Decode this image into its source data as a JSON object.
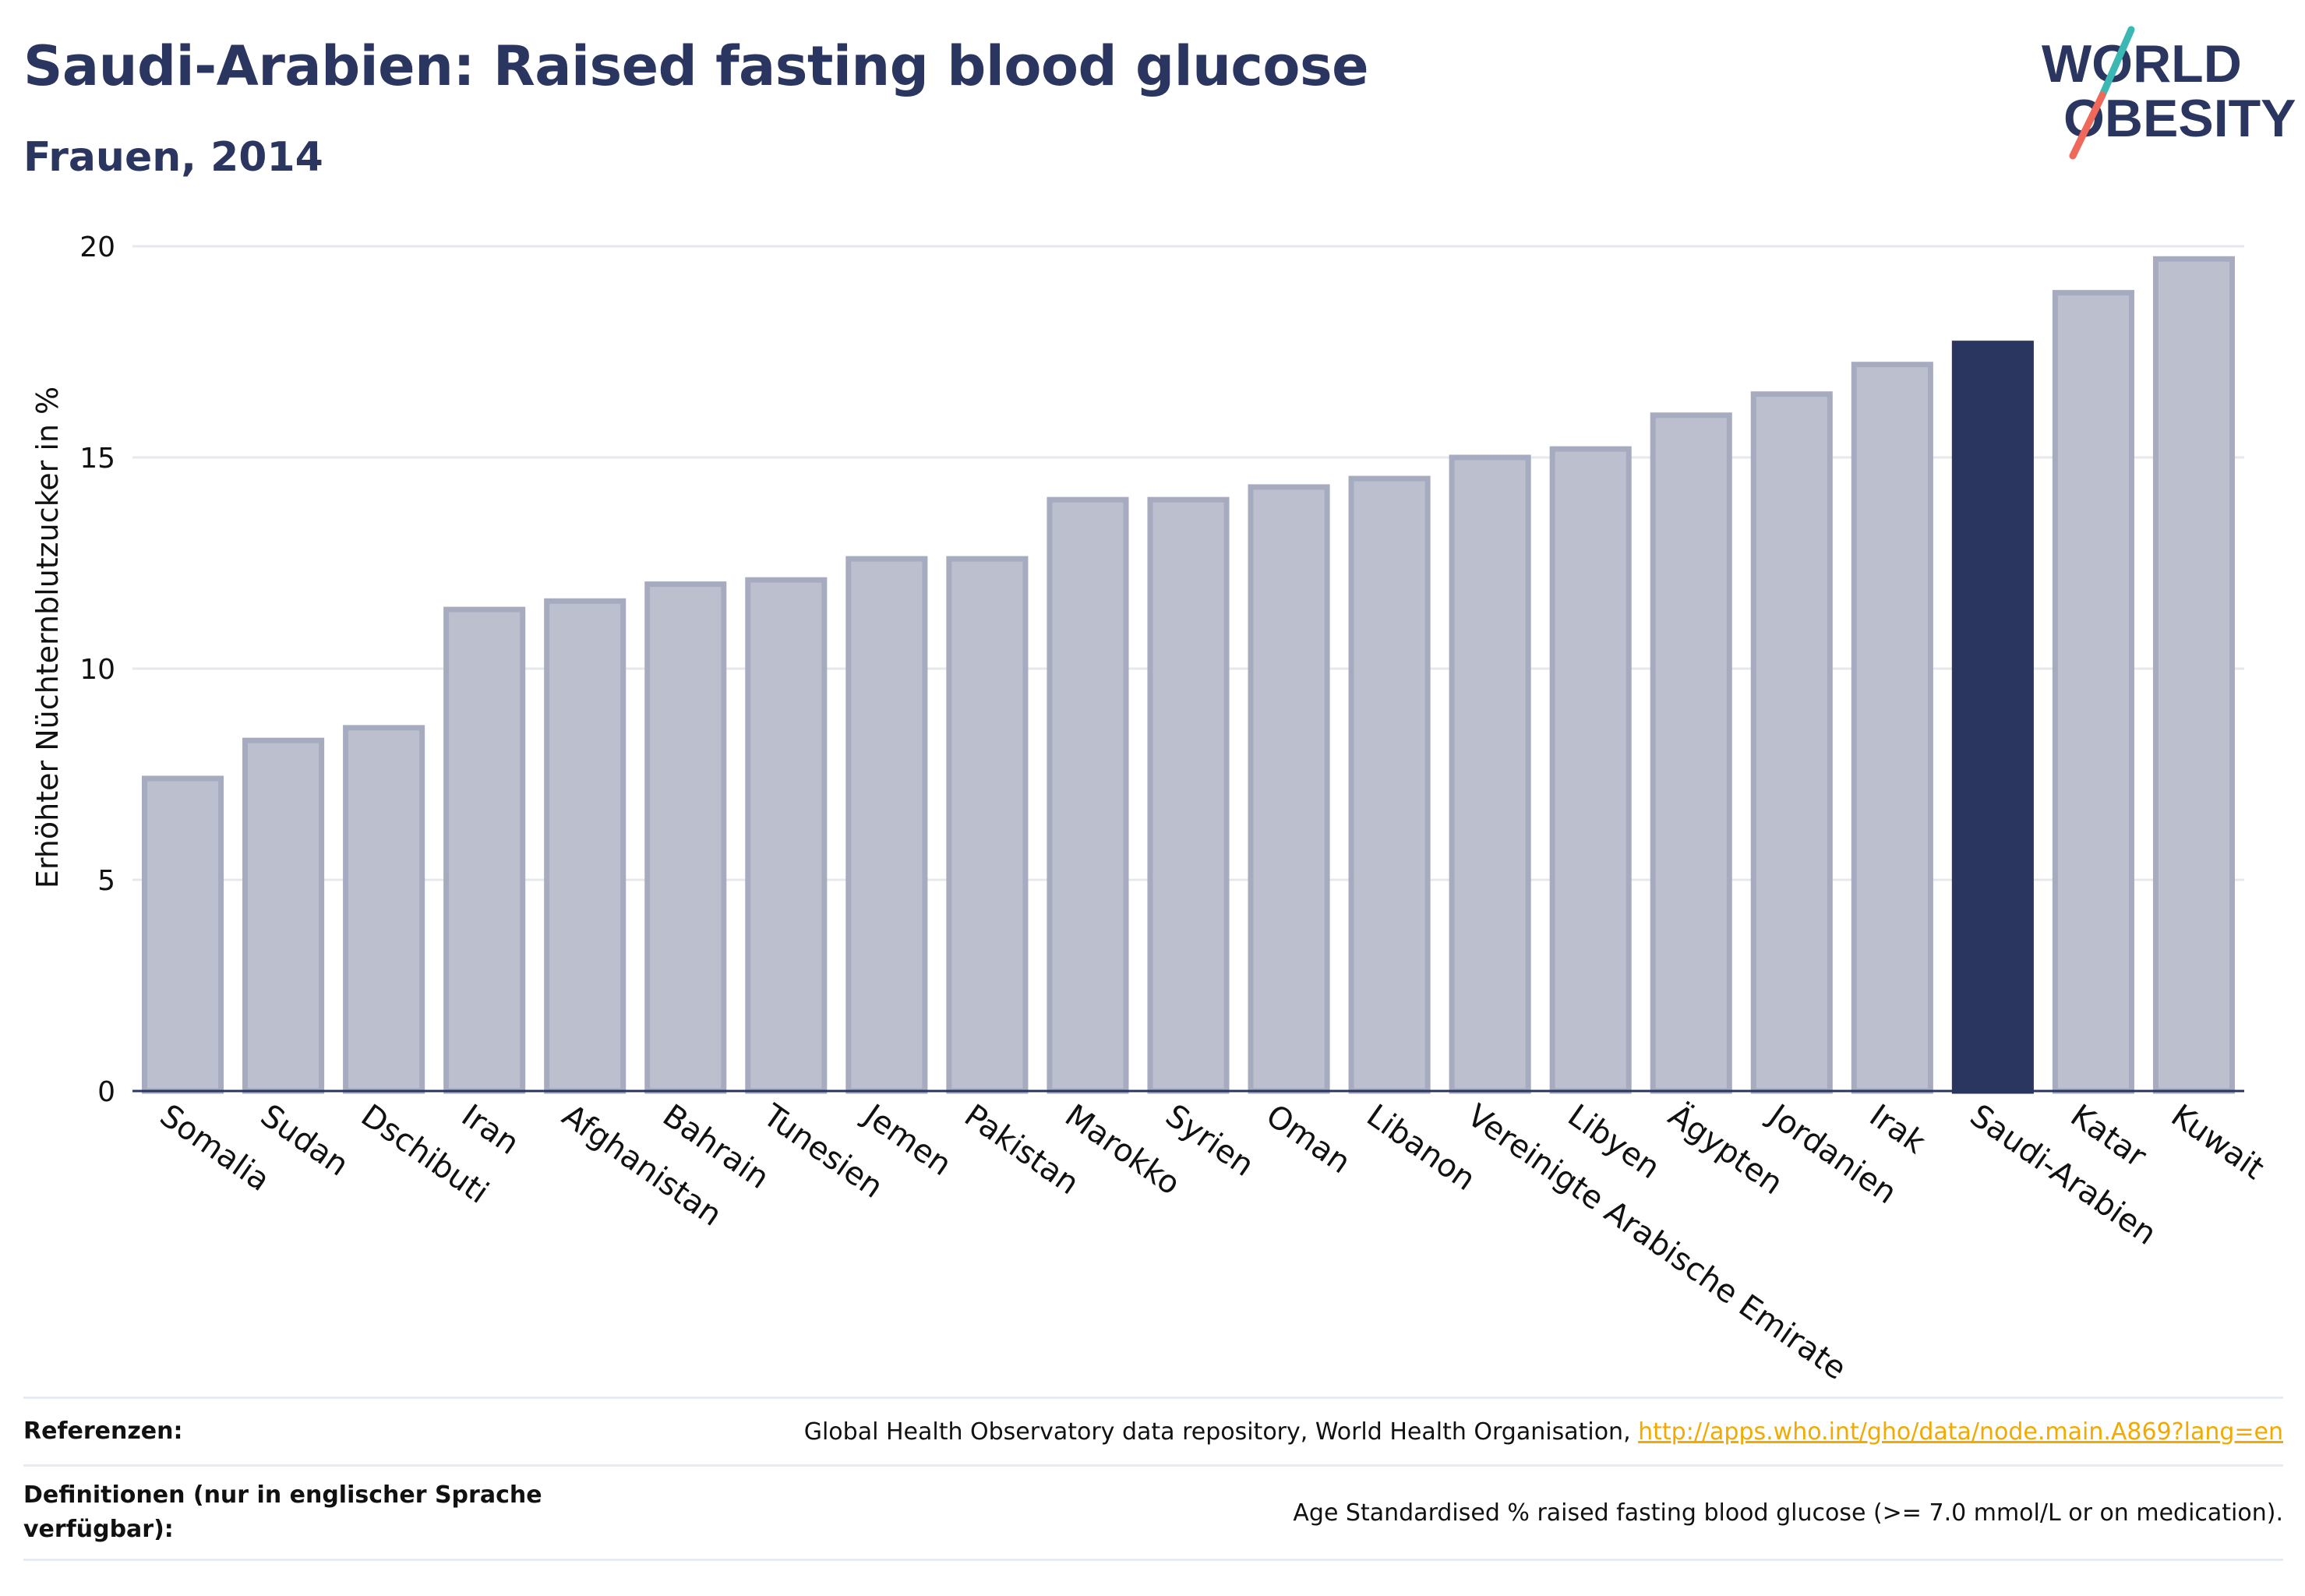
{
  "header": {
    "title": "Saudi-Arabien: Raised fasting blood glucose",
    "subtitle": "Frauen, 2014"
  },
  "logo": {
    "line1": "WORLD",
    "line2": "OBESITY",
    "colors": {
      "text": "#2a3560",
      "slash_top": "#3cb8b4",
      "slash_bottom": "#f0685a"
    }
  },
  "chart_data": {
    "type": "bar",
    "ylabel": "Erhöhter Nüchternblutzucker in %",
    "xlabel": "",
    "ylim": [
      0,
      20
    ],
    "yticks": [
      0,
      5,
      10,
      15,
      20
    ],
    "grid": true,
    "categories": [
      "Somalia",
      "Sudan",
      "Dschibuti",
      "Iran",
      "Afghanistan",
      "Bahrain",
      "Tunesien",
      "Jemen",
      "Pakistan",
      "Marokko",
      "Syrien",
      "Oman",
      "Libanon",
      "Vereinigte Arabische Emirate",
      "Libyen",
      "Ägypten",
      "Jordanien",
      "Irak",
      "Saudi-Arabien",
      "Katar",
      "Kuwait"
    ],
    "values": [
      7.4,
      8.3,
      8.6,
      11.4,
      11.6,
      12.0,
      12.1,
      12.6,
      12.6,
      14.0,
      14.0,
      14.3,
      14.5,
      15.0,
      15.2,
      16.0,
      16.5,
      17.2,
      17.7,
      18.9,
      19.7
    ],
    "highlight": "Saudi-Arabien",
    "colors": {
      "bar": "#bcc0ce",
      "bar_border": "#a6abbf",
      "highlight": "#2a3560",
      "grid": "#e6e8ee",
      "axis": "#2a3560"
    }
  },
  "footer": {
    "references_label": "Referenzen:",
    "references_text": "Global Health Observatory data repository, World Health Organisation, ",
    "references_link": "http://apps.who.int/gho/data/node.main.A869?lang=en",
    "definitions_label": "Definitionen (nur in englischer Sprache verfügbar):",
    "definitions_text": "Age Standardised % raised fasting blood glucose (>= 7.0 mmol/L or on medication)."
  }
}
